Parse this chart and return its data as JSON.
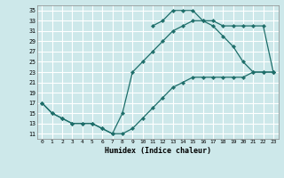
{
  "xlabel": "Humidex (Indice chaleur)",
  "bg_color": "#cde8ea",
  "grid_color": "#ffffff",
  "line_color": "#1e6e6a",
  "xlim": [
    -0.5,
    23.5
  ],
  "ylim": [
    10.0,
    36.0
  ],
  "xticks": [
    0,
    1,
    2,
    3,
    4,
    5,
    6,
    7,
    8,
    9,
    10,
    11,
    12,
    13,
    14,
    15,
    16,
    17,
    18,
    19,
    20,
    21,
    22,
    23
  ],
  "yticks": [
    11,
    13,
    15,
    17,
    19,
    21,
    23,
    25,
    27,
    29,
    31,
    33,
    35
  ],
  "curve1_x": [
    0,
    1,
    2,
    3,
    4,
    5,
    6,
    7,
    8,
    9,
    10,
    11,
    12,
    13,
    14,
    15,
    16,
    17,
    18,
    19,
    20,
    21,
    22,
    23
  ],
  "curve1_y": [
    17,
    15,
    14,
    13,
    13,
    13,
    12,
    11,
    11,
    12,
    14,
    16,
    18,
    20,
    21,
    22,
    22,
    22,
    22,
    22,
    22,
    23,
    23,
    23
  ],
  "curve2_x": [
    0,
    1,
    2,
    3,
    4,
    5,
    6,
    7,
    8,
    9,
    10,
    11,
    12,
    13,
    14,
    15,
    16,
    17,
    18,
    19,
    20,
    21,
    22,
    23
  ],
  "curve2_y": [
    17,
    15,
    14,
    13,
    13,
    13,
    12,
    11,
    15,
    23,
    25,
    27,
    29,
    31,
    32,
    33,
    33,
    32,
    30,
    28,
    25,
    23,
    23,
    23
  ],
  "curve3_x": [
    11,
    12,
    13,
    14,
    15,
    16,
    17,
    18,
    19,
    20,
    21,
    22,
    23
  ],
  "curve3_y": [
    32,
    33,
    35,
    35,
    35,
    33,
    33,
    32,
    32,
    32,
    32,
    32,
    23
  ]
}
